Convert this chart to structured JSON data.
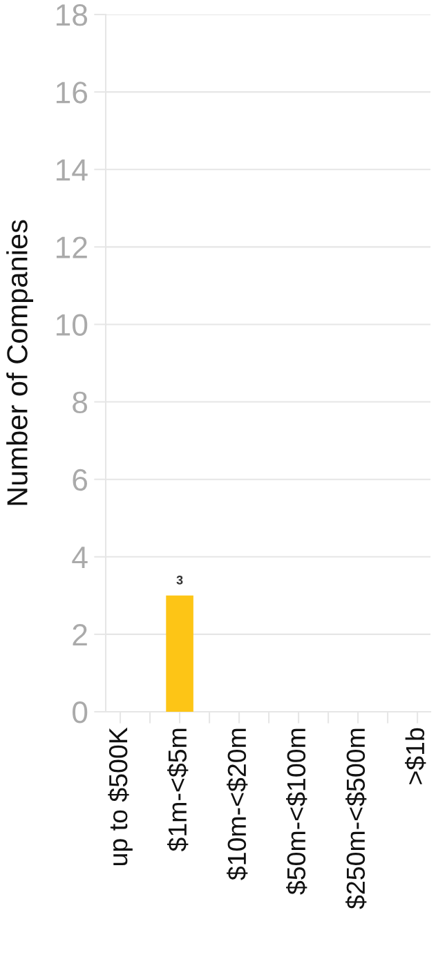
{
  "chart_data": {
    "type": "bar",
    "ylabel": "Number of Companies",
    "categories": [
      "up to $500K",
      "$1m-<$5m",
      "$10m-<$20m",
      "$50m-<$100m",
      "$250m-<$500m",
      ">$1b"
    ],
    "values": [
      0,
      3,
      0,
      0,
      0,
      0
    ],
    "color": "#fdc516",
    "value_labels": [
      null,
      "3",
      null,
      null,
      null,
      null
    ],
    "ylim": [
      0,
      18
    ],
    "yticks": [
      0,
      2,
      4,
      6,
      8,
      10,
      12,
      14,
      16,
      18
    ],
    "grid": "y"
  }
}
